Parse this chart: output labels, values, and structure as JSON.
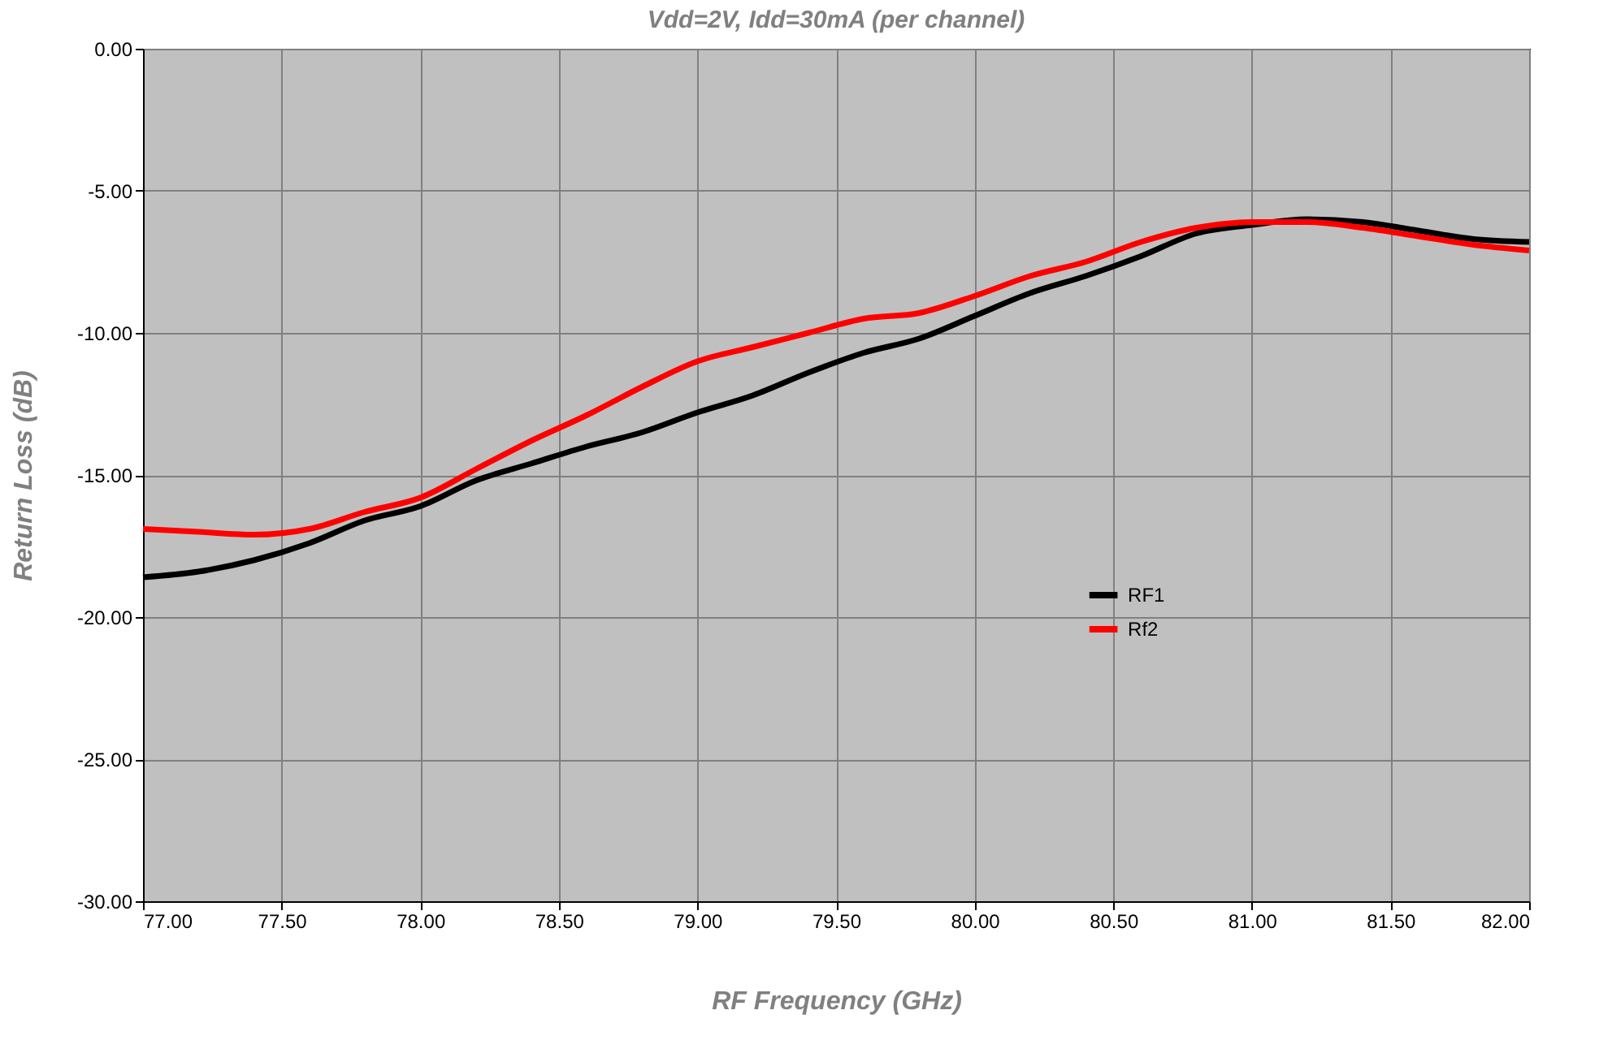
{
  "chart_data": {
    "type": "line",
    "title": "Vdd=2V, Idd=30mA (per channel)",
    "xlabel": "RF Frequency (GHz)",
    "ylabel": "Return Loss (dB)",
    "x": [
      77.0,
      77.2,
      77.4,
      77.6,
      77.8,
      78.0,
      78.2,
      78.4,
      78.6,
      78.8,
      79.0,
      79.2,
      79.4,
      79.6,
      79.8,
      80.0,
      80.2,
      80.4,
      80.6,
      80.8,
      81.0,
      81.2,
      81.4,
      81.6,
      81.8,
      82.0
    ],
    "series": [
      {
        "name": "RF1",
        "color": "#000000",
        "values": [
          -18.6,
          -18.4,
          -18.0,
          -17.4,
          -16.6,
          -16.1,
          -15.2,
          -14.6,
          -14.0,
          -13.5,
          -12.8,
          -12.2,
          -11.4,
          -10.7,
          -10.2,
          -9.4,
          -8.6,
          -8.0,
          -7.3,
          -6.5,
          -6.2,
          -6.0,
          -6.1,
          -6.4,
          -6.7,
          -6.8
        ]
      },
      {
        "name": "Rf2",
        "color": "#ff0000",
        "values": [
          -16.9,
          -17.0,
          -17.1,
          -16.9,
          -16.3,
          -15.8,
          -14.8,
          -13.8,
          -12.9,
          -11.9,
          -11.0,
          -10.5,
          -10.0,
          -9.5,
          -9.3,
          -8.7,
          -8.0,
          -7.5,
          -6.8,
          -6.3,
          -6.1,
          -6.1,
          -6.3,
          -6.6,
          -6.9,
          -7.1
        ]
      }
    ],
    "xlim": [
      77,
      82
    ],
    "xticks": [
      {
        "value": 77,
        "label": "77.00"
      },
      {
        "value": 77.5,
        "label": "77.50"
      },
      {
        "value": 78,
        "label": "78.00"
      },
      {
        "value": 78.5,
        "label": "78.50"
      },
      {
        "value": 79,
        "label": "79.00"
      },
      {
        "value": 79.5,
        "label": "79.50"
      },
      {
        "value": 80,
        "label": "80.00"
      },
      {
        "value": 80.5,
        "label": "80.50"
      },
      {
        "value": 81,
        "label": "81.00"
      },
      {
        "value": 81.5,
        "label": "81.50"
      },
      {
        "value": 82,
        "label": "82.00"
      }
    ],
    "ylim": [
      -30,
      0
    ],
    "yticks": [
      {
        "value": -30,
        "label": "-30.00"
      },
      {
        "value": -25,
        "label": "-25.00"
      },
      {
        "value": -20,
        "label": "-20.00"
      },
      {
        "value": -15,
        "label": "-15.00"
      },
      {
        "value": -10,
        "label": "-10.00"
      },
      {
        "value": -5,
        "label": "-5.00"
      },
      {
        "value": 0,
        "label": "0.00"
      }
    ],
    "grid": true,
    "legend": "right",
    "marker": "none",
    "line_style": "solid"
  }
}
